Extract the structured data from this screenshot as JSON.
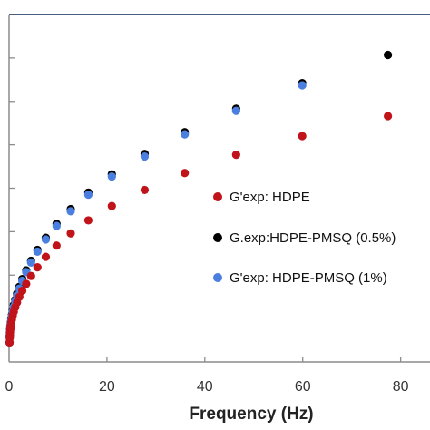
{
  "chart_data": {
    "type": "scatter",
    "title": "",
    "xlabel": "Frequency (Hz)",
    "ylabel": "",
    "xlim": [
      0,
      86
    ],
    "ylim": [
      0,
      8.0
    ],
    "x_ticks": [
      "0",
      "20",
      "40",
      "60",
      "80"
    ],
    "x_tick_values": [
      0,
      20,
      40,
      60,
      80
    ],
    "y_tick_values": [
      1,
      2,
      3,
      4,
      5,
      6,
      7
    ],
    "grid": false,
    "legend_position": "center-right",
    "series": [
      {
        "name": "G'exp: HDPE",
        "color": "#c0141a",
        "x": [
          0.1,
          0.13,
          0.17,
          0.21,
          0.27,
          0.35,
          0.45,
          0.58,
          0.75,
          0.97,
          1.26,
          1.62,
          2.1,
          2.7,
          3.5,
          4.5,
          5.8,
          7.5,
          9.7,
          12.6,
          16.2,
          21.0,
          27.7,
          35.9,
          46.4,
          59.9,
          77.4
        ],
        "y": [
          0.45,
          0.55,
          0.62,
          0.69,
          0.76,
          0.83,
          0.9,
          0.98,
          1.07,
          1.16,
          1.26,
          1.37,
          1.5,
          1.64,
          1.8,
          1.98,
          2.18,
          2.42,
          2.68,
          2.96,
          3.26,
          3.59,
          3.96,
          4.35,
          4.77,
          5.2,
          5.66
        ]
      },
      {
        "name": "G.exp:HDPE-PMSQ (0.5%)",
        "color": "#000000",
        "x": [
          0.1,
          0.13,
          0.17,
          0.21,
          0.27,
          0.35,
          0.45,
          0.58,
          0.75,
          0.97,
          1.26,
          1.62,
          2.1,
          2.7,
          3.5,
          4.5,
          5.8,
          7.5,
          9.7,
          12.6,
          16.2,
          21.0,
          27.7,
          35.9,
          46.4,
          59.9,
          77.4
        ],
        "y": [
          0.45,
          0.6,
          0.68,
          0.75,
          0.83,
          0.91,
          1.0,
          1.09,
          1.19,
          1.31,
          1.43,
          1.57,
          1.73,
          1.91,
          2.11,
          2.33,
          2.58,
          2.86,
          3.18,
          3.52,
          3.9,
          4.32,
          4.79,
          5.29,
          5.83,
          6.42,
          7.07
        ]
      },
      {
        "name": "G'exp: HDPE-PMSQ (1%)",
        "color": "#4a7fe0",
        "x": [
          0.1,
          0.13,
          0.17,
          0.21,
          0.27,
          0.35,
          0.45,
          0.58,
          0.75,
          0.97,
          1.26,
          1.62,
          2.1,
          2.7,
          3.5,
          4.5,
          5.8,
          7.5,
          9.7,
          12.6,
          16.2,
          21.0,
          27.7,
          35.9,
          46.4,
          59.9
        ],
        "y": [
          0.45,
          0.58,
          0.66,
          0.73,
          0.81,
          0.89,
          0.97,
          1.06,
          1.16,
          1.27,
          1.39,
          1.53,
          1.69,
          1.87,
          2.07,
          2.29,
          2.54,
          2.82,
          3.13,
          3.47,
          3.85,
          4.27,
          4.73,
          5.24,
          5.78,
          6.37
        ]
      }
    ]
  },
  "colors": {
    "axis": "#8c8c8c",
    "top_border": "#4a5f80"
  }
}
